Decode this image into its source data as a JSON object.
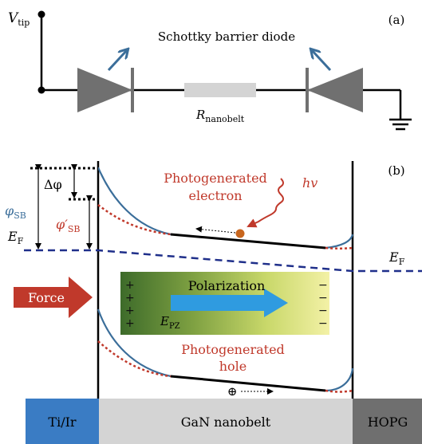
{
  "panel_a": {
    "label": "(a)",
    "v_tip_main": "V",
    "v_tip_sub": "tip",
    "diode_title": "Schottky barrier diode",
    "resistor_main": "R",
    "resistor_sub": "nanobelt"
  },
  "panel_b": {
    "label": "(b)",
    "phi_sb_main": "φ",
    "phi_sb_sub": "SB",
    "phi_sb_prime_main": "φ′",
    "phi_sb_prime_sub": "SB",
    "delta_phi": "Δφ",
    "ef_left_main": "E",
    "ef_left_sub": "F",
    "ef_right_main": "E",
    "ef_right_sub": "F",
    "photo_electron_line1": "Photogenerated",
    "photo_electron_line2": "electron",
    "hv": "hv",
    "force": "Force",
    "polarization": "Polarization",
    "epz_main": "E",
    "epz_sub": "PZ",
    "plus": "+",
    "minus": "−",
    "photo_hole_line1": "Photogenerated",
    "photo_hole_line2": "hole",
    "hole_symbol": "⊕"
  },
  "materials": {
    "left": "Ti/Ir",
    "middle": "GaN nanobelt",
    "right": "HOPG"
  },
  "colors": {
    "blue_curve": "#3b6e9a",
    "red_text": "#c0392b",
    "fermi_dash": "#1f2f8a",
    "force_arrow": "#c0392b",
    "polar_arrow": "#2f9be0",
    "block_left": "#3a7cc4",
    "block_mid": "#d4d4d4",
    "block_right": "#6f6f6f",
    "diode_gray": "#707070"
  }
}
